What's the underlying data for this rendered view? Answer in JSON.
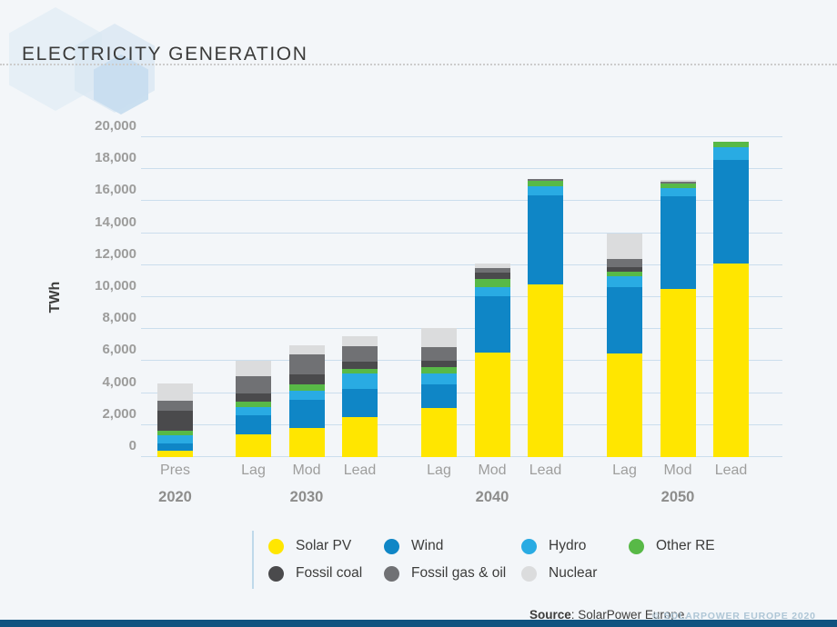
{
  "header": {
    "title": "ELECTRICITY GENERATION"
  },
  "chart_data": {
    "type": "bar",
    "stacked": true,
    "title": "ELECTRICITY GENERATION",
    "ylabel": "TWh",
    "ylim": [
      0,
      20000
    ],
    "ytick_step": 2000,
    "ytick_labels": [
      "0",
      "2,000",
      "4,000",
      "6,000",
      "8,000",
      "10,000",
      "12,000",
      "14,000",
      "16,000",
      "18,000",
      "20,000"
    ],
    "grid": true,
    "legend_position": "bottom",
    "categories": [
      "Pres",
      "Lag",
      "Mod",
      "Lead",
      "Lag",
      "Mod",
      "Lead",
      "Lag",
      "Mod",
      "Lead"
    ],
    "groups": [
      {
        "label": "2020",
        "bar_indices": [
          0
        ]
      },
      {
        "label": "2030",
        "bar_indices": [
          1,
          2,
          3
        ]
      },
      {
        "label": "2040",
        "bar_indices": [
          4,
          5,
          6
        ]
      },
      {
        "label": "2050",
        "bar_indices": [
          7,
          8,
          9
        ]
      }
    ],
    "series": [
      {
        "name": "Solar PV",
        "color": "#FFE600",
        "values": [
          400,
          1400,
          1800,
          2500,
          3050,
          6550,
          10800,
          6450,
          10500,
          12100
        ]
      },
      {
        "name": "Wind",
        "color": "#0F86C6",
        "values": [
          450,
          1200,
          1800,
          1750,
          1500,
          3500,
          5550,
          4200,
          5800,
          6500
        ]
      },
      {
        "name": "Hydro",
        "color": "#29ABE3",
        "values": [
          500,
          500,
          550,
          1000,
          700,
          550,
          600,
          650,
          500,
          750
        ]
      },
      {
        "name": "Other RE",
        "color": "#58B947",
        "values": [
          300,
          350,
          400,
          250,
          350,
          550,
          350,
          300,
          300,
          350
        ]
      },
      {
        "name": "Fossil coal",
        "color": "#4A4A4C",
        "values": [
          1250,
          550,
          650,
          450,
          450,
          400,
          0,
          300,
          0,
          0
        ]
      },
      {
        "name": "Fossil gas & oil",
        "color": "#707174",
        "values": [
          600,
          1050,
          1250,
          1000,
          850,
          300,
          100,
          500,
          100,
          0
        ]
      },
      {
        "name": "Nuclear",
        "color": "#DBDCDD",
        "values": [
          1100,
          950,
          550,
          600,
          1150,
          250,
          0,
          1600,
          150,
          0
        ]
      }
    ],
    "totals": [
      4600,
      6000,
      7000,
      7550,
      8050,
      12100,
      17400,
      14000,
      17350,
      19700
    ]
  },
  "legend": {
    "rows": [
      [
        "Solar PV",
        "Wind",
        "Hydro",
        "Other RE"
      ],
      [
        "Fossil coal",
        "Fossil gas & oil",
        "Nuclear"
      ]
    ]
  },
  "footer": {
    "source_label": "Source",
    "source_text": ": SolarPower Europe.",
    "copyright": "© SOLARPOWER EUROPE 2020"
  }
}
